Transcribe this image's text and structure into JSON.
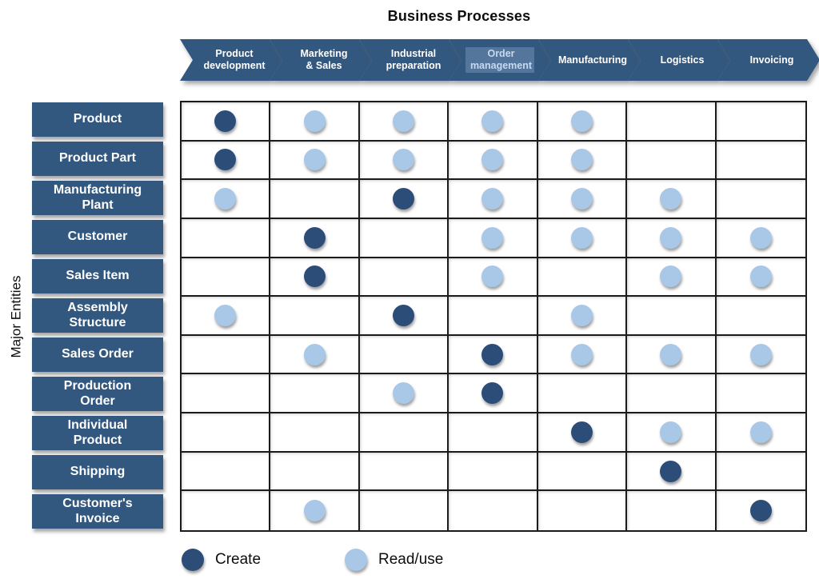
{
  "title": "Business Processes",
  "axis_label": "Major Entities",
  "colors": {
    "create": "#2C4D77",
    "read": "#A9C7E6",
    "header": "#33587F",
    "grid_line": "#1b1b1b"
  },
  "processes": [
    {
      "label": "Product\ndevelopment",
      "highlighted": false
    },
    {
      "label": "Marketing\n& Sales",
      "highlighted": false
    },
    {
      "label": "Industrial\npreparation",
      "highlighted": false
    },
    {
      "label": "Order\nmanagement",
      "highlighted": true
    },
    {
      "label": "Manufacturing",
      "highlighted": false
    },
    {
      "label": "Logistics",
      "highlighted": false
    },
    {
      "label": "Invoicing",
      "highlighted": false
    }
  ],
  "entities": [
    "Product",
    "Product Part",
    "Manufacturing\nPlant",
    "Customer",
    "Sales Item",
    "Assembly\nStructure",
    "Sales Order",
    "Production\nOrder",
    "Individual\nProduct",
    "Shipping",
    "Customer's\nInvoice"
  ],
  "matrix": [
    [
      "create",
      "read",
      "read",
      "read",
      "read",
      "",
      ""
    ],
    [
      "create",
      "read",
      "read",
      "read",
      "read",
      "",
      ""
    ],
    [
      "read",
      "",
      "create",
      "read",
      "read",
      "read",
      ""
    ],
    [
      "",
      "create",
      "",
      "read",
      "read",
      "read",
      "read"
    ],
    [
      "",
      "create",
      "",
      "read",
      "",
      "read",
      "read"
    ],
    [
      "read",
      "",
      "create",
      "",
      "read",
      "",
      ""
    ],
    [
      "",
      "read",
      "",
      "create",
      "read",
      "read",
      "read"
    ],
    [
      "",
      "",
      "read",
      "create",
      "",
      "",
      ""
    ],
    [
      "",
      "",
      "",
      "",
      "create",
      "read",
      "read"
    ],
    [
      "",
      "",
      "",
      "",
      "",
      "create",
      ""
    ],
    [
      "",
      "read",
      "",
      "",
      "",
      "",
      "create"
    ]
  ],
  "legend": [
    {
      "label": "Create",
      "type": "create"
    },
    {
      "label": "Read/use",
      "type": "read"
    }
  ]
}
